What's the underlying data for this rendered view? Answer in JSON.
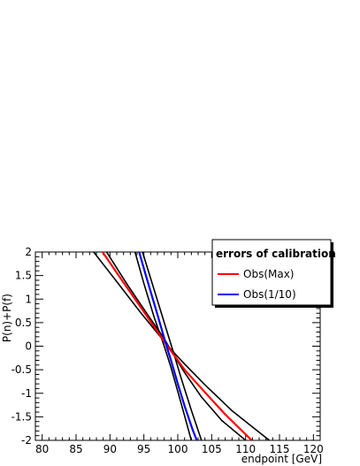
{
  "chart_data": {
    "type": "line",
    "title": "",
    "xlabel": "endpoint [GeV]",
    "ylabel": "P(n)+P(f)",
    "xlim": [
      79,
      121
    ],
    "ylim": [
      -2,
      2
    ],
    "x_ticks": [
      80,
      85,
      90,
      95,
      100,
      105,
      110,
      115,
      120
    ],
    "y_ticks": [
      2,
      1.5,
      1,
      0.5,
      0,
      -0.5,
      -1,
      -1.5,
      -2
    ],
    "x_tick_labels": [
      "80",
      "85",
      "90",
      "95",
      "100",
      "105",
      "110",
      "115",
      "120"
    ],
    "y_tick_labels": [
      "2",
      "1.5",
      "1",
      "0.5",
      "0",
      "-0.5",
      "-1",
      "-1.5",
      "-2"
    ],
    "grid": false,
    "legend": {
      "title": "errors of calibration",
      "placement": "top-right",
      "entries": [
        {
          "label": "Obs(Max)",
          "color": "#ff0000"
        },
        {
          "label": "Obs(1/10)",
          "color": "#0000ff"
        }
      ]
    },
    "series": [
      {
        "name": "Obs(Max)",
        "color": "#ff0000",
        "width": 2.2,
        "x": [
          88.9,
          92,
          95,
          98,
          99,
          101,
          104,
          107,
          110.9
        ],
        "y": [
          2.0,
          1.35,
          0.73,
          0.1,
          -0.1,
          -0.5,
          -0.98,
          -1.45,
          -2.0
        ]
      },
      {
        "name": "",
        "color": "#000000",
        "width": 1.6,
        "x": [
          87.6,
          91,
          94.5,
          98,
          99,
          101,
          104,
          108,
          113.5
        ],
        "y": [
          2.0,
          1.37,
          0.72,
          0.1,
          -0.07,
          -0.38,
          -0.82,
          -1.37,
          -2.0
        ]
      },
      {
        "name": "",
        "color": "#000000",
        "width": 1.6,
        "x": [
          89.5,
          92.5,
          95.5,
          98,
          99,
          101,
          103.5,
          106.5,
          110.0
        ],
        "y": [
          2.0,
          1.32,
          0.68,
          0.16,
          -0.09,
          -0.56,
          -1.08,
          -1.58,
          -2.0
        ]
      },
      {
        "name": "Obs(1/10)",
        "color": "#0000ff",
        "width": 2.2,
        "x": [
          94.3,
          95.5,
          97,
          98.2,
          99,
          100,
          101,
          102.2,
          102.8
        ],
        "y": [
          2.0,
          1.4,
          0.67,
          0.07,
          -0.3,
          -0.8,
          -1.27,
          -1.78,
          -2.0
        ]
      },
      {
        "name": "",
        "color": "#000000",
        "width": 1.6,
        "x": [
          93.7,
          95,
          96.5,
          98,
          99,
          100,
          101,
          102
        ],
        "y": [
          2.0,
          1.33,
          0.62,
          0.0,
          -0.45,
          -0.96,
          -1.48,
          -2.0
        ]
      },
      {
        "name": "",
        "color": "#000000",
        "width": 1.6,
        "x": [
          94.8,
          96,
          97.5,
          98.5,
          99.5,
          100.5,
          102,
          103.5
        ],
        "y": [
          2.0,
          1.44,
          0.74,
          0.27,
          -0.2,
          -0.68,
          -1.36,
          -2.0
        ]
      }
    ]
  }
}
